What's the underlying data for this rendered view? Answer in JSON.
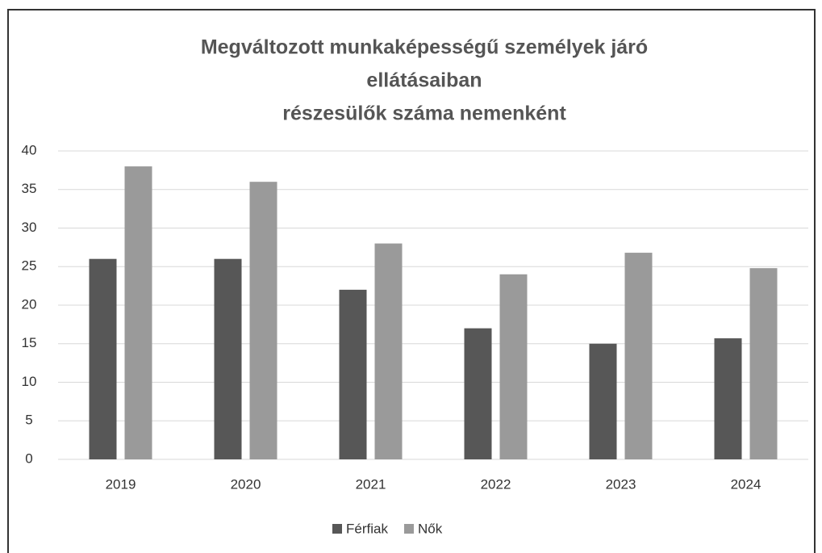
{
  "chart_data": {
    "type": "bar",
    "title": [
      "Megváltozott munkaképességű személyek járó",
      "ellátásaiban",
      "részesülők száma nemenként"
    ],
    "categories": [
      "2019",
      "2020",
      "2021",
      "2022",
      "2023",
      "2024"
    ],
    "series": [
      {
        "name": "Férfiak",
        "color": "#575757",
        "values": [
          26,
          26,
          22,
          17,
          15,
          15.7
        ]
      },
      {
        "name": "Nők",
        "color": "#9a9a9a",
        "values": [
          38,
          36,
          28,
          24,
          26.8,
          24.8
        ]
      }
    ],
    "ylim": [
      0,
      40
    ],
    "yticks": [
      0,
      5,
      10,
      15,
      20,
      25,
      30,
      35,
      40
    ],
    "grid": true,
    "legend": "bottom"
  }
}
